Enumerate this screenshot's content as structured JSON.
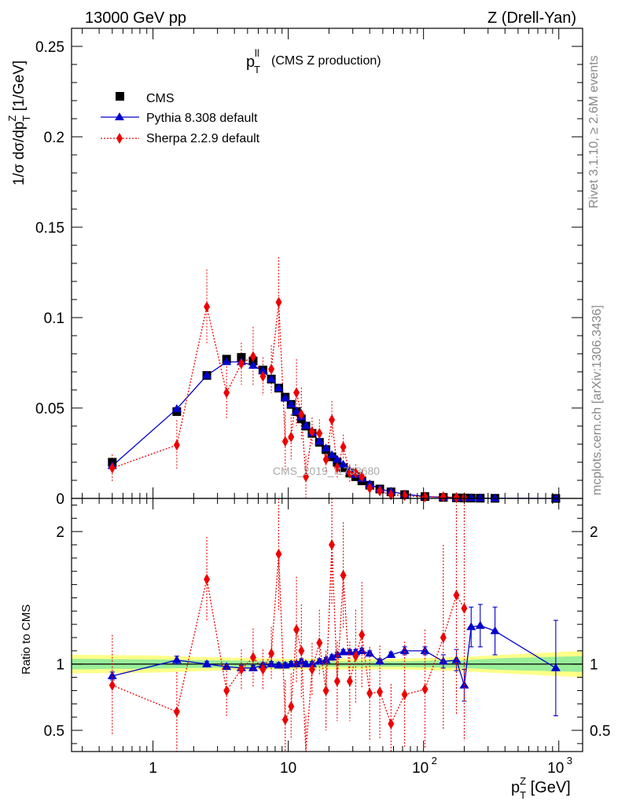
{
  "header": {
    "left": "13000 GeV pp",
    "right": "Z (Drell-Yan)"
  },
  "side_text": {
    "rivet": "Rivet 3.1.10, ≥ 2.6M events",
    "mcplots": "mcplots.cern.ch [arXiv:1306.3436]"
  },
  "watermark": "CMS_2019_I1753680",
  "legend": {
    "cms": "CMS",
    "pythia": "Pythia 8.308 default",
    "sherpa": "Sherpa 2.2.9 default"
  },
  "colors": {
    "cms": "#000000",
    "pythia": "#0000cc",
    "sherpa": "#ee0000",
    "band_inner": "#99ee99",
    "band_outer": "#ffff88"
  },
  "chart_data": [
    {
      "type": "scatter",
      "panel": "main",
      "title": "p_T^ll (CMS Z production)",
      "title_main": "p",
      "title_sub": "T",
      "title_sup": "ll",
      "title_rest": "(CMS Z production)",
      "ylabel": "1/σ dσ/dp_T^Z [1/GeV]",
      "ylabel_parts": {
        "a": "1/σ dσ/dp",
        "sub": "T",
        "sup": "Z",
        "b": " [1/GeV]"
      },
      "xscale": "log",
      "xlim": [
        0.25,
        1500
      ],
      "ylim": [
        0,
        0.26
      ],
      "yticks": [
        0,
        0.05,
        0.1,
        0.15,
        0.2,
        0.25
      ],
      "ytick_labels": [
        "0",
        "0.05",
        "0.1",
        "0.15",
        "0.2",
        "0.25"
      ],
      "x": [
        0.5,
        1.5,
        2.5,
        3.5,
        4.5,
        5.5,
        6.5,
        7.5,
        8.5,
        9.5,
        10.5,
        11.5,
        12.5,
        13.5,
        15,
        17,
        19,
        21,
        23,
        25.5,
        28.5,
        31.5,
        35,
        40,
        47.5,
        57.5,
        72.5,
        102.5,
        140,
        175,
        200,
        225,
        262.5,
        337.5,
        950
      ],
      "series": [
        {
          "name": "CMS",
          "marker": "square",
          "y": [
            0.02,
            0.048,
            0.068,
            0.077,
            0.078,
            0.076,
            0.071,
            0.066,
            0.061,
            0.056,
            0.052,
            0.048,
            0.044,
            0.04,
            0.036,
            0.031,
            0.027,
            0.023,
            0.02,
            0.017,
            0.014,
            0.012,
            0.0097,
            0.0073,
            0.0052,
            0.0036,
            0.0021,
            0.001,
            0.00055,
            0.00033,
            0.00024,
            0.00018,
            0.00012,
            6e-05,
            5e-06
          ]
        },
        {
          "name": "Pythia 8.308 default",
          "marker": "triangle",
          "y": [
            0.018,
            0.0495,
            0.068,
            0.0755,
            0.0755,
            0.0735,
            0.0705,
            0.066,
            0.061,
            0.0555,
            0.052,
            0.048,
            0.045,
            0.0402,
            0.0362,
            0.0315,
            0.0277,
            0.024,
            0.0215,
            0.0187,
            0.0153,
            0.0131,
            0.0109,
            0.0079,
            0.0052,
            0.0038,
            0.0023,
            0.0011,
            0.00056,
            0.00034,
            0.0002,
            0.00023,
            0.00015,
            7.5e-05,
            4.8e-06
          ]
        },
        {
          "name": "Sherpa 2.2.9 default",
          "marker": "diamond",
          "y": [
            0.0168,
            0.0295,
            0.106,
            0.0585,
            0.0745,
            0.0785,
            0.0675,
            0.0715,
            0.1085,
            0.0315,
            0.034,
            0.0585,
            0.0465,
            0.012,
            0.037,
            0.036,
            0.0215,
            0.0435,
            0.017,
            0.0285,
            0.014,
            0.0142,
            0.012,
            0.0057,
            0.0041,
            0.002,
            0.0016,
            0.0008,
            0.0009,
            0.0005,
            0.0004
          ]
        }
      ]
    },
    {
      "type": "scatter",
      "panel": "ratio",
      "ylabel": "Ratio to CMS",
      "xlabel": "p_T^Z [GeV]",
      "xlabel_parts": {
        "a": "p",
        "sub": "T",
        "sup": "Z",
        "b": " [GeV]"
      },
      "xscale": "log",
      "xlim": [
        0.25,
        1500
      ],
      "ylim": [
        0.34,
        2.25
      ],
      "yticks": [
        0.5,
        1,
        2
      ],
      "ytick_labels": [
        "0.5",
        "1",
        "2"
      ],
      "xticks": [
        1,
        10,
        100,
        1000
      ],
      "xtick_labels": [
        {
          "base": "1",
          "exp": ""
        },
        {
          "base": "10",
          "exp": ""
        },
        {
          "base": "10",
          "exp": "2"
        },
        {
          "base": "10",
          "exp": "3"
        }
      ],
      "uncertainty_band": {
        "x": [
          0.25,
          1.0,
          2.0,
          5.0,
          10.0,
          30.0,
          60.0,
          100.0,
          200.0,
          400.0,
          1500.0
        ],
        "inner": [
          0.04,
          0.035,
          0.03,
          0.025,
          0.02,
          0.02,
          0.02,
          0.025,
          0.03,
          0.045,
          0.06
        ],
        "outer": [
          0.07,
          0.065,
          0.055,
          0.045,
          0.04,
          0.04,
          0.04,
          0.045,
          0.055,
          0.07,
          0.1
        ]
      },
      "series": [
        {
          "name": "Pythia 8.308 default",
          "x": [
            0.5,
            1.5,
            2.5,
            3.5,
            4.5,
            5.5,
            6.5,
            7.5,
            8.5,
            9.5,
            10.5,
            11.5,
            12.5,
            13.5,
            15,
            17,
            19,
            21,
            23,
            25.5,
            28.5,
            31.5,
            35,
            40,
            47.5,
            57.5,
            72.5,
            102.5,
            140,
            175,
            200,
            225,
            262.5,
            337.5,
            950
          ],
          "y": [
            0.91,
            1.03,
            1.0,
            0.98,
            0.97,
            0.97,
            0.99,
            1.0,
            0.99,
            0.99,
            1.0,
            1.0,
            1.02,
            1.0,
            1.0,
            1.02,
            1.03,
            1.05,
            1.07,
            1.09,
            1.09,
            1.09,
            1.1,
            1.08,
            1.02,
            1.07,
            1.1,
            1.1,
            1.02,
            1.03,
            0.84,
            1.28,
            1.29,
            1.25,
            0.97
          ],
          "err": [
            0.03,
            0.03,
            0.02,
            0.02,
            0.02,
            0.02,
            0.02,
            0.02,
            0.02,
            0.02,
            0.02,
            0.02,
            0.02,
            0.02,
            0.02,
            0.02,
            0.02,
            0.02,
            0.02,
            0.02,
            0.02,
            0.02,
            0.02,
            0.02,
            0.02,
            0.02,
            0.03,
            0.03,
            0.05,
            0.08,
            0.12,
            0.15,
            0.16,
            0.18,
            0.36
          ]
        },
        {
          "name": "Sherpa 2.2.9 default",
          "x": [
            0.5,
            1.5,
            2.5,
            3.5,
            4.5,
            5.5,
            6.5,
            7.5,
            8.5,
            9.5,
            10.5,
            11.5,
            12.5,
            13.5,
            15,
            17,
            19,
            21,
            23,
            25.5,
            28.5,
            31.5,
            35,
            40,
            47.5,
            57.5,
            72.5,
            102.5,
            140,
            175,
            200
          ],
          "y": [
            0.84,
            0.64,
            1.64,
            0.8,
            0.96,
            1.05,
            0.96,
            1.08,
            1.83,
            0.58,
            0.68,
            1.26,
            1.1,
            0.31,
            0.96,
            1.16,
            0.8,
            1.9,
            0.87,
            1.67,
            0.87,
            1.06,
            1.22,
            0.78,
            0.79,
            0.55,
            0.77,
            0.81,
            1.2,
            1.52,
            1.42
          ],
          "err": [
            0.38,
            0.3,
            0.32,
            0.2,
            0.15,
            0.22,
            0.15,
            0.2,
            0.42,
            0.3,
            0.25,
            0.4,
            0.35,
            0.3,
            0.2,
            0.25,
            0.3,
            0.45,
            0.3,
            0.4,
            0.3,
            0.35,
            0.4,
            0.35,
            0.35,
            0.3,
            0.4,
            0.45,
            0.7,
            0.9,
            1.0
          ]
        }
      ]
    }
  ]
}
